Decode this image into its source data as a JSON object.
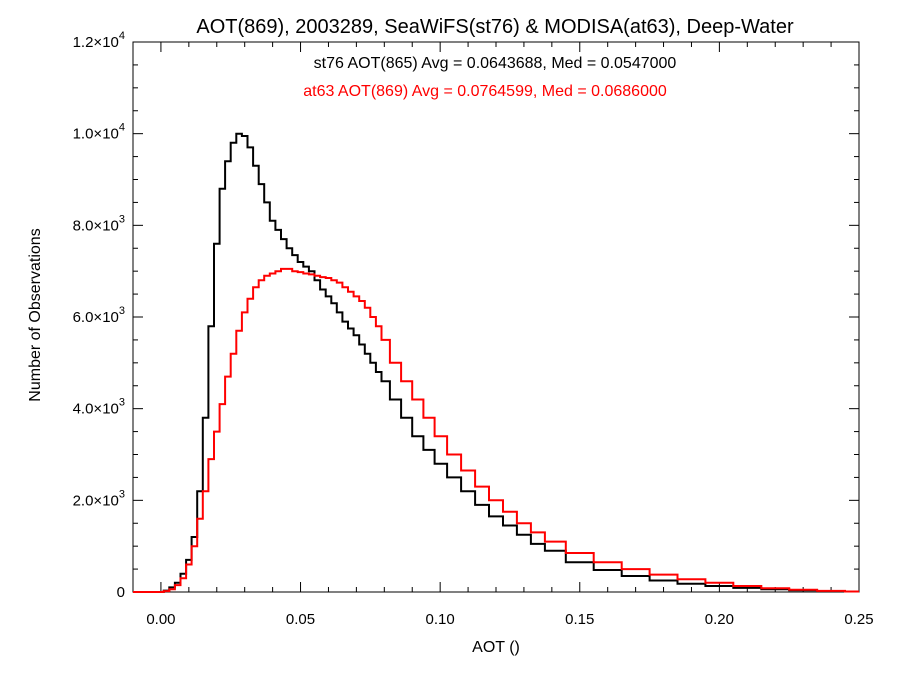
{
  "chart_data": {
    "type": "line",
    "title": "AOT(869), 2003289, SeaWiFS(st76) & MODISA(at63), Deep-Water",
    "xlabel": "AOT ()",
    "ylabel": "Number of Observations",
    "xlim": [
      -0.01,
      0.25
    ],
    "ylim": [
      0,
      12000
    ],
    "x_ticks": [
      {
        "value": 0.0,
        "label": "0.00"
      },
      {
        "value": 0.05,
        "label": "0.05"
      },
      {
        "value": 0.1,
        "label": "0.10"
      },
      {
        "value": 0.15,
        "label": "0.15"
      },
      {
        "value": 0.2,
        "label": "0.20"
      },
      {
        "value": 0.25,
        "label": "0.25"
      }
    ],
    "y_ticks": [
      {
        "value": 0,
        "mantissa": "0",
        "exponent": ""
      },
      {
        "value": 2000,
        "mantissa": "2.0×10",
        "exponent": "3"
      },
      {
        "value": 4000,
        "mantissa": "4.0×10",
        "exponent": "3"
      },
      {
        "value": 6000,
        "mantissa": "6.0×10",
        "exponent": "3"
      },
      {
        "value": 8000,
        "mantissa": "8.0×10",
        "exponent": "3"
      },
      {
        "value": 10000,
        "mantissa": "1.0×10",
        "exponent": "4"
      },
      {
        "value": 12000,
        "mantissa": "1.2×10",
        "exponent": "4"
      }
    ],
    "grid": false,
    "annotations": [
      {
        "text": "st76 AOT(865) Avg = 0.0643688, Med = 0.0547000",
        "color": "#000000"
      },
      {
        "text": "at63 AOT(869) Avg = 0.0764599, Med = 0.0686000",
        "color": "#ff0000"
      }
    ],
    "series": [
      {
        "color": "#000000",
        "step": true,
        "x": [
          -0.01,
          0.0,
          0.002,
          0.004,
          0.006,
          0.008,
          0.01,
          0.012,
          0.014,
          0.016,
          0.018,
          0.02,
          0.022,
          0.024,
          0.026,
          0.028,
          0.03,
          0.032,
          0.034,
          0.036,
          0.038,
          0.04,
          0.042,
          0.044,
          0.046,
          0.048,
          0.05,
          0.052,
          0.054,
          0.056,
          0.058,
          0.06,
          0.062,
          0.064,
          0.066,
          0.068,
          0.07,
          0.072,
          0.074,
          0.076,
          0.078,
          0.08,
          0.084,
          0.088,
          0.092,
          0.096,
          0.1,
          0.105,
          0.11,
          0.115,
          0.12,
          0.125,
          0.13,
          0.135,
          0.14,
          0.15,
          0.16,
          0.17,
          0.18,
          0.19,
          0.2,
          0.21,
          0.22,
          0.23,
          0.24,
          0.25
        ],
        "y": [
          0,
          0,
          30,
          100,
          200,
          400,
          700,
          1200,
          2200,
          3800,
          5800,
          7600,
          8800,
          9400,
          9800,
          10000,
          9950,
          9700,
          9300,
          8900,
          8500,
          8100,
          7900,
          7700,
          7500,
          7350,
          7200,
          7100,
          7000,
          6800,
          6600,
          6450,
          6300,
          6100,
          5900,
          5750,
          5600,
          5400,
          5200,
          5000,
          4800,
          4600,
          4200,
          3800,
          3400,
          3100,
          2800,
          2500,
          2200,
          1900,
          1650,
          1450,
          1250,
          1050,
          900,
          650,
          480,
          350,
          250,
          180,
          130,
          90,
          60,
          40,
          20,
          10
        ]
      },
      {
        "color": "#ff0000",
        "step": true,
        "x": [
          -0.01,
          0.0,
          0.002,
          0.004,
          0.006,
          0.008,
          0.01,
          0.012,
          0.014,
          0.016,
          0.018,
          0.02,
          0.022,
          0.024,
          0.026,
          0.028,
          0.03,
          0.032,
          0.034,
          0.036,
          0.038,
          0.04,
          0.042,
          0.044,
          0.046,
          0.048,
          0.05,
          0.052,
          0.054,
          0.056,
          0.058,
          0.06,
          0.062,
          0.064,
          0.066,
          0.068,
          0.07,
          0.072,
          0.074,
          0.076,
          0.078,
          0.08,
          0.084,
          0.088,
          0.092,
          0.096,
          0.1,
          0.105,
          0.11,
          0.115,
          0.12,
          0.125,
          0.13,
          0.135,
          0.14,
          0.15,
          0.16,
          0.17,
          0.18,
          0.19,
          0.2,
          0.21,
          0.22,
          0.23,
          0.24,
          0.25
        ],
        "y": [
          0,
          0,
          20,
          60,
          150,
          300,
          600,
          1000,
          1600,
          2200,
          2900,
          3500,
          4100,
          4700,
          5200,
          5700,
          6100,
          6400,
          6650,
          6800,
          6900,
          6950,
          7000,
          7050,
          7050,
          7000,
          6980,
          6950,
          6930,
          6900,
          6870,
          6850,
          6800,
          6750,
          6650,
          6550,
          6450,
          6350,
          6200,
          6000,
          5800,
          5500,
          5000,
          4600,
          4200,
          3800,
          3400,
          3000,
          2650,
          2300,
          2000,
          1750,
          1500,
          1300,
          1100,
          850,
          650,
          500,
          380,
          280,
          200,
          130,
          80,
          50,
          25,
          10
        ]
      }
    ]
  }
}
